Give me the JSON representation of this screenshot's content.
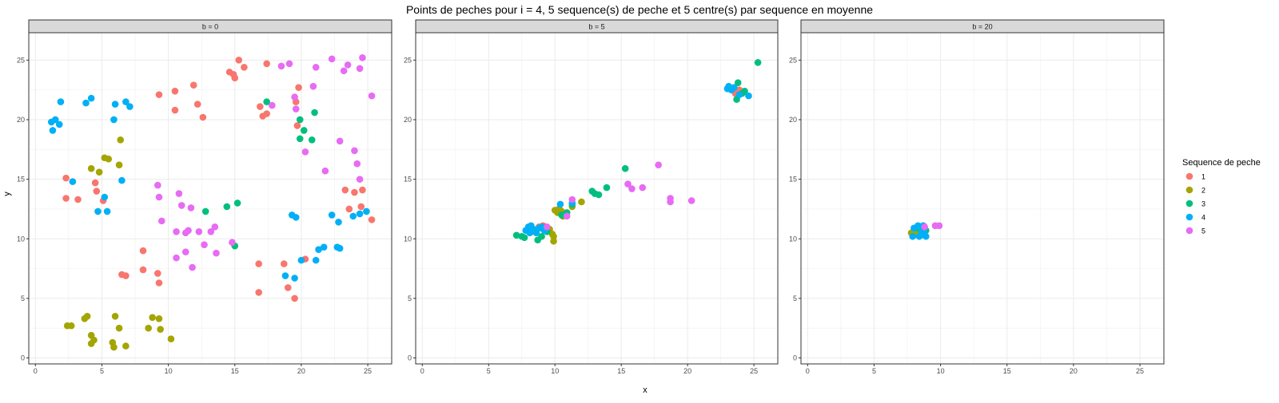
{
  "chart_data": {
    "type": "scatter",
    "title": "Points de peches pour i = 4, 5 sequence(s) de peche et 5 centre(s) par sequence en moyenne",
    "xlabel": "x",
    "ylabel": "y",
    "xlim": [
      -0.5,
      26.8
    ],
    "ylim": [
      -0.5,
      27.3
    ],
    "xticks": [
      0,
      5,
      10,
      15,
      20,
      25
    ],
    "yticks": [
      0,
      5,
      10,
      15,
      20,
      25
    ],
    "grid": true,
    "legend": {
      "title": "Sequence de peche",
      "position": "right",
      "entries": [
        "1",
        "2",
        "3",
        "4",
        "5"
      ]
    },
    "colors": {
      "1": "#F8766D",
      "2": "#A3A500",
      "3": "#00BF7D",
      "4": "#00B0F6",
      "5": "#E76BF3"
    },
    "panels": [
      {
        "strip": "b = 0",
        "series": [
          {
            "name": "1",
            "points": [
              [
                2.3,
                15.1
              ],
              [
                2.3,
                13.4
              ],
              [
                3.2,
                13.3
              ],
              [
                4.5,
                14.7
              ],
              [
                4.6,
                14.0
              ],
              [
                5.1,
                13.2
              ],
              [
                9.3,
                22.1
              ],
              [
                10.5,
                22.4
              ],
              [
                10.5,
                20.8
              ],
              [
                11.9,
                22.9
              ],
              [
                12.2,
                21.3
              ],
              [
                12.6,
                20.2
              ],
              [
                14.6,
                24.0
              ],
              [
                14.9,
                23.8
              ],
              [
                15.0,
                23.5
              ],
              [
                15.3,
                25.0
              ],
              [
                15.7,
                24.4
              ],
              [
                17.4,
                24.7
              ],
              [
                16.9,
                21.1
              ],
              [
                17.1,
                20.3
              ],
              [
                17.4,
                20.5
              ],
              [
                19.6,
                21.5
              ],
              [
                19.7,
                19.5
              ],
              [
                19.8,
                22.7
              ],
              [
                8.1,
                9.0
              ],
              [
                8.1,
                7.4
              ],
              [
                9.2,
                7.1
              ],
              [
                9.3,
                6.3
              ],
              [
                6.5,
                7.0
              ],
              [
                6.8,
                6.9
              ],
              [
                16.8,
                7.9
              ],
              [
                16.8,
                5.5
              ],
              [
                18.7,
                7.9
              ],
              [
                19.0,
                5.9
              ],
              [
                19.5,
                5.0
              ],
              [
                20.3,
                8.3
              ],
              [
                23.3,
                14.1
              ],
              [
                23.6,
                12.5
              ],
              [
                24.0,
                13.9
              ],
              [
                24.5,
                12.7
              ],
              [
                24.6,
                14.1
              ],
              [
                25.3,
                11.6
              ]
            ]
          },
          {
            "name": "2",
            "points": [
              [
                4.2,
                15.9
              ],
              [
                4.8,
                15.6
              ],
              [
                5.2,
                16.8
              ],
              [
                5.5,
                16.7
              ],
              [
                6.3,
                16.2
              ],
              [
                6.4,
                18.3
              ],
              [
                2.4,
                2.7
              ],
              [
                2.7,
                2.7
              ],
              [
                3.7,
                3.3
              ],
              [
                3.9,
                3.5
              ],
              [
                4.2,
                1.9
              ],
              [
                4.2,
                1.2
              ],
              [
                4.4,
                1.5
              ],
              [
                5.8,
                1.3
              ],
              [
                5.9,
                0.9
              ],
              [
                6.0,
                3.5
              ],
              [
                6.3,
                2.5
              ],
              [
                6.8,
                1.0
              ],
              [
                8.5,
                2.5
              ],
              [
                8.8,
                3.4
              ],
              [
                9.3,
                3.3
              ],
              [
                9.4,
                2.4
              ],
              [
                10.2,
                1.6
              ]
            ]
          },
          {
            "name": "3",
            "points": [
              [
                17.4,
                21.5
              ],
              [
                12.8,
                12.3
              ],
              [
                14.4,
                12.7
              ],
              [
                15.2,
                13.0
              ],
              [
                15.0,
                9.4
              ],
              [
                19.9,
                20.0
              ],
              [
                20.2,
                19.1
              ],
              [
                20.8,
                18.3
              ],
              [
                21.0,
                20.6
              ],
              [
                19.9,
                18.4
              ]
            ]
          },
          {
            "name": "4",
            "points": [
              [
                1.2,
                19.8
              ],
              [
                1.3,
                19.1
              ],
              [
                1.5,
                20.0
              ],
              [
                1.8,
                19.6
              ],
              [
                1.9,
                21.5
              ],
              [
                3.8,
                21.4
              ],
              [
                4.2,
                21.8
              ],
              [
                6.0,
                21.3
              ],
              [
                6.8,
                21.5
              ],
              [
                7.1,
                21.1
              ],
              [
                5.9,
                20.0
              ],
              [
                2.8,
                14.8
              ],
              [
                4.7,
                12.3
              ],
              [
                5.2,
                13.5
              ],
              [
                5.4,
                12.3
              ],
              [
                6.5,
                14.9
              ],
              [
                19.3,
                12.0
              ],
              [
                19.6,
                11.8
              ],
              [
                18.8,
                6.9
              ],
              [
                19.5,
                6.7
              ],
              [
                20.0,
                8.2
              ],
              [
                21.1,
                8.2
              ],
              [
                21.3,
                9.1
              ],
              [
                21.7,
                9.3
              ],
              [
                22.3,
                12.0
              ],
              [
                22.7,
                9.3
              ],
              [
                22.9,
                9.2
              ],
              [
                22.8,
                11.4
              ],
              [
                23.9,
                11.9
              ],
              [
                24.4,
                12.1
              ],
              [
                24.9,
                12.3
              ]
            ]
          },
          {
            "name": "5",
            "points": [
              [
                9.2,
                14.5
              ],
              [
                9.3,
                13.5
              ],
              [
                9.5,
                11.5
              ],
              [
                10.6,
                10.6
              ],
              [
                10.8,
                13.8
              ],
              [
                11.0,
                12.8
              ],
              [
                11.3,
                10.5
              ],
              [
                11.5,
                10.7
              ],
              [
                11.7,
                12.6
              ],
              [
                11.8,
                7.6
              ],
              [
                10.6,
                8.4
              ],
              [
                11.3,
                8.9
              ],
              [
                12.3,
                10.6
              ],
              [
                12.7,
                9.5
              ],
              [
                13.2,
                10.6
              ],
              [
                13.5,
                11.0
              ],
              [
                13.6,
                8.8
              ],
              [
                14.8,
                9.7
              ],
              [
                17.8,
                21.2
              ],
              [
                19.5,
                21.9
              ],
              [
                19.6,
                20.9
              ],
              [
                18.5,
                24.5
              ],
              [
                19.1,
                24.7
              ],
              [
                20.3,
                17.3
              ],
              [
                20.9,
                22.8
              ],
              [
                21.1,
                24.4
              ],
              [
                21.8,
                15.7
              ],
              [
                22.3,
                25.1
              ],
              [
                22.9,
                18.2
              ],
              [
                23.2,
                24.1
              ],
              [
                23.5,
                24.6
              ],
              [
                24.0,
                17.4
              ],
              [
                24.2,
                16.3
              ],
              [
                24.4,
                15.0
              ],
              [
                24.4,
                24.3
              ],
              [
                24.6,
                25.2
              ],
              [
                25.3,
                22.0
              ]
            ]
          }
        ]
      },
      {
        "strip": "b = 5",
        "series": [
          {
            "name": "1",
            "points": [
              [
                23.6,
                22.2
              ],
              [
                23.9,
                22.5
              ],
              [
                24.2,
                22.3
              ],
              [
                8.3,
                10.8
              ],
              [
                8.8,
                11.0
              ],
              [
                9.1,
                11.1
              ]
            ]
          },
          {
            "name": "2",
            "points": [
              [
                8.3,
                10.6
              ],
              [
                8.9,
                10.9
              ],
              [
                9.3,
                11.0
              ],
              [
                9.6,
                10.8
              ],
              [
                9.8,
                10.4
              ],
              [
                9.9,
                10.2
              ],
              [
                9.9,
                9.8
              ],
              [
                10.0,
                12.4
              ],
              [
                10.2,
                12.2
              ],
              [
                10.3,
                12.5
              ],
              [
                10.4,
                12.4
              ],
              [
                10.5,
                12.3
              ],
              [
                10.6,
                11.9
              ],
              [
                11.3,
                12.7
              ],
              [
                12.0,
                13.1
              ]
            ]
          },
          {
            "name": "3",
            "points": [
              [
                7.1,
                10.3
              ],
              [
                7.5,
                10.2
              ],
              [
                7.7,
                10.1
              ],
              [
                8.7,
                9.9
              ],
              [
                9.0,
                10.2
              ],
              [
                9.4,
                10.6
              ],
              [
                10.5,
                12.0
              ],
              [
                10.9,
                12.2
              ],
              [
                11.3,
                12.9
              ],
              [
                12.8,
                14.0
              ],
              [
                13.0,
                13.8
              ],
              [
                13.3,
                13.7
              ],
              [
                13.9,
                14.3
              ],
              [
                15.3,
                15.9
              ],
              [
                23.8,
                23.1
              ],
              [
                24.1,
                22.2
              ],
              [
                24.3,
                22.4
              ],
              [
                25.3,
                24.8
              ],
              [
                23.7,
                21.7
              ]
            ]
          },
          {
            "name": "4",
            "points": [
              [
                7.8,
                10.7
              ],
              [
                8.0,
                11.0
              ],
              [
                8.1,
                10.5
              ],
              [
                8.2,
                11.1
              ],
              [
                8.4,
                10.8
              ],
              [
                8.6,
                10.5
              ],
              [
                8.8,
                10.9
              ],
              [
                9.0,
                11.0
              ],
              [
                9.2,
                10.7
              ],
              [
                10.4,
                12.9
              ],
              [
                11.3,
                13.0
              ],
              [
                23.0,
                22.6
              ],
              [
                23.1,
                22.8
              ],
              [
                23.3,
                22.5
              ],
              [
                23.5,
                22.7
              ],
              [
                23.9,
                22.1
              ],
              [
                24.6,
                22.0
              ]
            ]
          },
          {
            "name": "5",
            "points": [
              [
                9.4,
                11.0
              ],
              [
                10.9,
                11.9
              ],
              [
                11.3,
                13.3
              ],
              [
                15.5,
                14.6
              ],
              [
                15.8,
                14.2
              ],
              [
                16.6,
                14.3
              ],
              [
                17.8,
                16.2
              ],
              [
                18.7,
                13.4
              ],
              [
                18.7,
                13.1
              ],
              [
                20.3,
                13.2
              ]
            ]
          }
        ]
      },
      {
        "strip": "b = 20",
        "series": [
          {
            "name": "1",
            "points": [
              [
                8.2,
                10.4
              ],
              [
                8.5,
                10.8
              ]
            ]
          },
          {
            "name": "2",
            "points": [
              [
                7.8,
                10.5
              ],
              [
                8.0,
                10.3
              ],
              [
                8.1,
                10.7
              ],
              [
                8.2,
                10.5
              ]
            ]
          },
          {
            "name": "3",
            "points": [
              [
                8.3,
                10.9
              ],
              [
                8.6,
                11.0
              ],
              [
                8.9,
                10.7
              ],
              [
                8.5,
                10.3
              ]
            ]
          },
          {
            "name": "4",
            "points": [
              [
                7.9,
                10.2
              ],
              [
                8.0,
                10.9
              ],
              [
                8.3,
                11.1
              ],
              [
                8.4,
                10.2
              ],
              [
                8.6,
                10.6
              ],
              [
                8.8,
                10.4
              ],
              [
                8.8,
                10.9
              ],
              [
                8.9,
                10.2
              ],
              [
                8.7,
                11.1
              ]
            ]
          },
          {
            "name": "5",
            "points": [
              [
                9.6,
                11.1
              ],
              [
                9.9,
                11.1
              ],
              [
                8.8,
                11.0
              ]
            ]
          }
        ]
      }
    ]
  }
}
